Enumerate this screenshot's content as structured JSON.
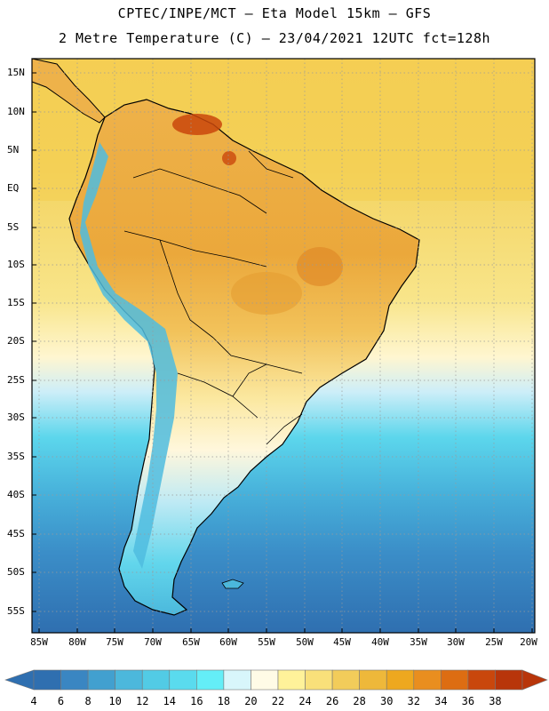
{
  "title_line1": "CPTEC/INPE/MCT –  Eta Model 15km – GFS",
  "title_line2": "2 Metre Temperature (C) – 23/04/2021 12UTC fct=128h",
  "lat_labels": [
    "15N",
    "10N",
    "5N",
    "EQ",
    "5S",
    "10S",
    "15S",
    "20S",
    "25S",
    "30S",
    "35S",
    "40S",
    "45S",
    "50S",
    "55S"
  ],
  "lon_labels": [
    "85W",
    "80W",
    "75W",
    "70W",
    "65W",
    "60W",
    "55W",
    "50W",
    "45W",
    "40W",
    "35W",
    "30W",
    "25W",
    "20W"
  ],
  "colorbar": {
    "labels": [
      "4",
      "6",
      "8",
      "10",
      "12",
      "14",
      "16",
      "18",
      "20",
      "22",
      "24",
      "26",
      "28",
      "30",
      "32",
      "34",
      "36",
      "38"
    ],
    "colors": [
      "#2f6fb0",
      "#3a86c2",
      "#42a0cf",
      "#4cb8dc",
      "#52cbe5",
      "#5adbee",
      "#64eef7",
      "#d8f6fb",
      "#fffbe6",
      "#fff29a",
      "#f9e07a",
      "#f2cc5a",
      "#eeb83a",
      "#eea81f",
      "#e98e1f",
      "#dd6d12",
      "#c9470c",
      "#b8350a"
    ]
  }
}
